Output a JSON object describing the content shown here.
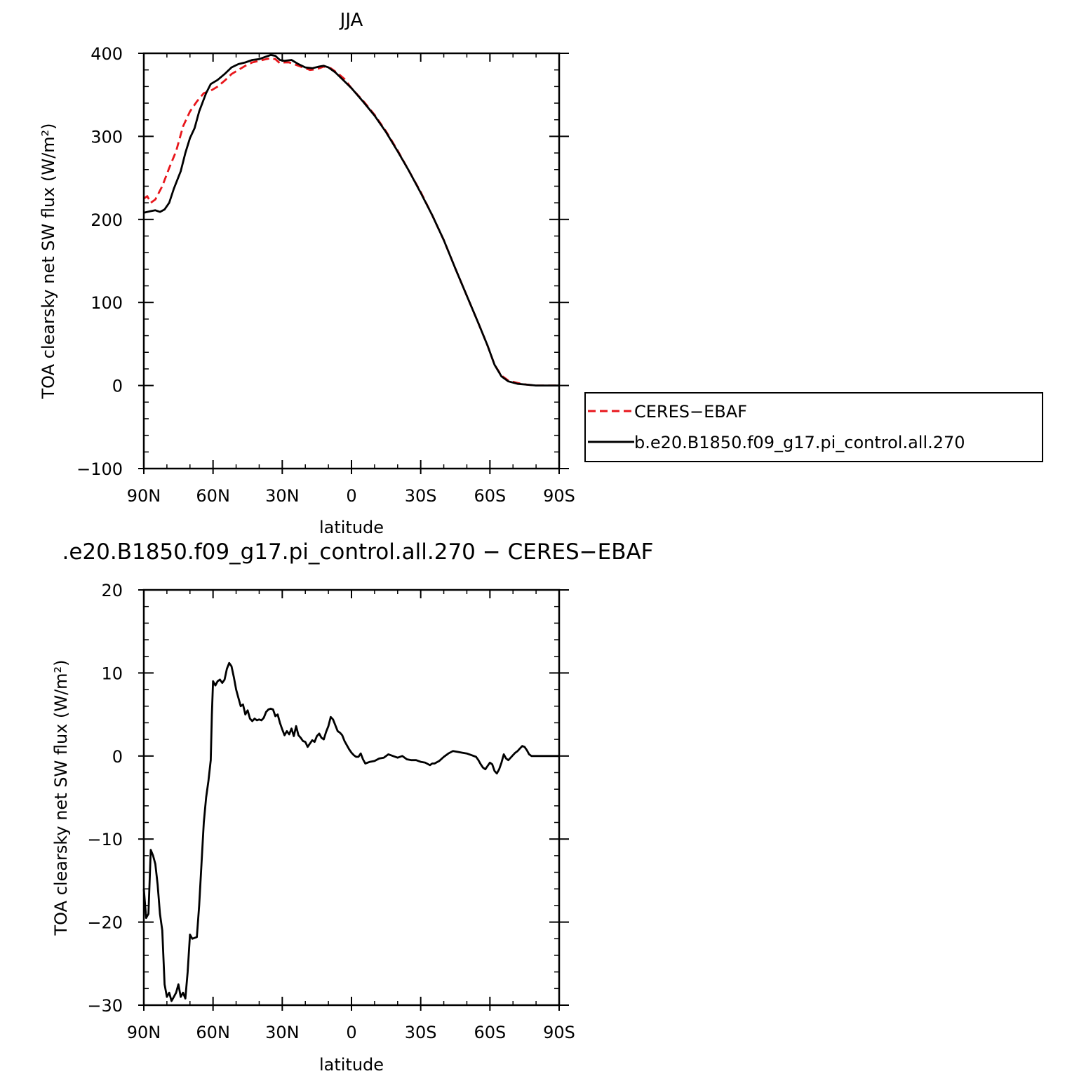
{
  "chart_data": [
    {
      "type": "line",
      "title": "JJA",
      "xlabel": "latitude",
      "ylabel": "TOA clearsky net SW flux (W/m²)",
      "xlim": [
        90,
        -90
      ],
      "ylim": [
        -100,
        400
      ],
      "xticks": [
        90,
        60,
        30,
        0,
        -30,
        -60,
        -90
      ],
      "xtick_labels": [
        "90N",
        "60N",
        "30N",
        "0",
        "30S",
        "60S",
        "90S"
      ],
      "yticks": [
        -100,
        0,
        100,
        200,
        300,
        400
      ],
      "ytick_labels": [
        "−100",
        "0",
        "100",
        "200",
        "300",
        "400"
      ],
      "legend": {
        "position": "right"
      },
      "series": [
        {
          "name": "CERES−EBAF",
          "color": "#e8161b",
          "dash": "dashed",
          "points": [
            [
              90,
              225
            ],
            [
              88.5,
              228
            ],
            [
              87,
              220
            ],
            [
              85,
              224
            ],
            [
              82,
              240
            ],
            [
              79,
              262
            ],
            [
              76,
              282
            ],
            [
              73,
              312
            ],
            [
              70,
              330
            ],
            [
              67,
              342
            ],
            [
              64,
              352
            ],
            [
              61,
              355
            ],
            [
              58,
              360
            ],
            [
              55,
              367
            ],
            [
              52,
              375
            ],
            [
              49,
              380
            ],
            [
              46,
              385
            ],
            [
              43,
              389
            ],
            [
              40,
              391
            ],
            [
              37,
              393
            ],
            [
              35,
              394
            ],
            [
              33,
              393
            ],
            [
              31,
              388
            ],
            [
              29,
              389
            ],
            [
              27,
              389
            ],
            [
              24,
              386
            ],
            [
              21,
              383
            ],
            [
              18,
              380
            ],
            [
              15,
              381
            ],
            [
              12,
              384
            ],
            [
              9,
              382
            ],
            [
              6,
              376
            ],
            [
              3,
              369
            ],
            [
              0,
              358
            ],
            [
              -5,
              343
            ],
            [
              -10,
              326
            ],
            [
              -15,
              306
            ],
            [
              -20,
              283
            ],
            [
              -25,
              258
            ],
            [
              -30,
              233
            ],
            [
              -35,
              205
            ],
            [
              -40,
              175
            ],
            [
              -45,
              141
            ],
            [
              -50,
              108
            ],
            [
              -55,
              75
            ],
            [
              -59,
              48
            ],
            [
              -62,
              25
            ],
            [
              -65,
              12
            ],
            [
              -68,
              6
            ],
            [
              -72,
              3
            ],
            [
              -76,
              1
            ],
            [
              -80,
              0
            ],
            [
              -90,
              0
            ]
          ]
        },
        {
          "name": "b.e20.B1850.f09_g17.pi_control.all.270",
          "color": "#000000",
          "dash": "solid",
          "points": [
            [
              90,
              208
            ],
            [
              87,
              210
            ],
            [
              85,
              211
            ],
            [
              83,
              209
            ],
            [
              81,
              212
            ],
            [
              79,
              220
            ],
            [
              77,
              237
            ],
            [
              74,
              258
            ],
            [
              72,
              280
            ],
            [
              70,
              298
            ],
            [
              68,
              310
            ],
            [
              66,
              330
            ],
            [
              63,
              352
            ],
            [
              61,
              363
            ],
            [
              58,
              368
            ],
            [
              55,
              375
            ],
            [
              52,
              383
            ],
            [
              49,
              387
            ],
            [
              46,
              389
            ],
            [
              43,
              392
            ],
            [
              40,
              393
            ],
            [
              37,
              396
            ],
            [
              35,
              398
            ],
            [
              33,
              397
            ],
            [
              31,
              392
            ],
            [
              29,
              391
            ],
            [
              26,
              392
            ],
            [
              23,
              387
            ],
            [
              20,
              383
            ],
            [
              17,
              382
            ],
            [
              14,
              384
            ],
            [
              12,
              385
            ],
            [
              10,
              383
            ],
            [
              7,
              377
            ],
            [
              4,
              369
            ],
            [
              0,
              358
            ],
            [
              -5,
              342
            ],
            [
              -10,
              325
            ],
            [
              -15,
              305
            ],
            [
              -20,
              282
            ],
            [
              -25,
              258
            ],
            [
              -30,
              232
            ],
            [
              -35,
              205
            ],
            [
              -40,
              175
            ],
            [
              -45,
              141
            ],
            [
              -50,
              108
            ],
            [
              -55,
              75
            ],
            [
              -59,
              48
            ],
            [
              -62,
              25
            ],
            [
              -65,
              11
            ],
            [
              -68,
              5
            ],
            [
              -72,
              2
            ],
            [
              -76,
              1
            ],
            [
              -80,
              0
            ],
            [
              -90,
              0
            ]
          ]
        }
      ]
    },
    {
      "type": "line",
      "title": ".e20.B1850.f09_g17.pi_control.all.270  −  CERES−EBAF",
      "xlabel": "latitude",
      "ylabel": "TOA clearsky net SW flux (W/m²)",
      "xlim": [
        90,
        -90
      ],
      "ylim": [
        -30,
        20
      ],
      "xticks": [
        90,
        60,
        30,
        0,
        -30,
        -60,
        -90
      ],
      "xtick_labels": [
        "90N",
        "60N",
        "30N",
        "0",
        "30S",
        "60S",
        "90S"
      ],
      "yticks": [
        -30,
        -20,
        -10,
        0,
        10,
        20
      ],
      "ytick_labels": [
        "−30",
        "−20",
        "−10",
        "0",
        "10",
        "20"
      ],
      "series": [
        {
          "color": "#000000",
          "dash": "solid",
          "points": [
            [
              90,
              -16
            ],
            [
              89,
              -19.5
            ],
            [
              88,
              -19
            ],
            [
              87,
              -11.3
            ],
            [
              86,
              -12
            ],
            [
              85,
              -13
            ],
            [
              84,
              -15.5
            ],
            [
              83,
              -19
            ],
            [
              82,
              -21
            ],
            [
              81,
              -27.5
            ],
            [
              80,
              -29
            ],
            [
              79,
              -28.5
            ],
            [
              78,
              -29.5
            ],
            [
              77,
              -29
            ],
            [
              76,
              -28.5
            ],
            [
              75,
              -27.5
            ],
            [
              74,
              -29
            ],
            [
              73,
              -28.5
            ],
            [
              72,
              -29.2
            ],
            [
              71,
              -26
            ],
            [
              70,
              -21.5
            ],
            [
              69,
              -22
            ],
            [
              67,
              -21.8
            ],
            [
              66,
              -18
            ],
            [
              65,
              -13
            ],
            [
              64,
              -8
            ],
            [
              63,
              -5
            ],
            [
              62,
              -3
            ],
            [
              61,
              -0.5
            ],
            [
              60.5,
              5
            ],
            [
              60,
              9
            ],
            [
              59,
              8.5
            ],
            [
              58,
              9
            ],
            [
              57,
              9.2
            ],
            [
              56,
              8.8
            ],
            [
              55,
              9.2
            ],
            [
              54,
              10.5
            ],
            [
              53,
              11.2
            ],
            [
              52,
              10.8
            ],
            [
              51,
              9.5
            ],
            [
              50,
              8
            ],
            [
              49,
              7
            ],
            [
              48,
              6
            ],
            [
              47,
              6.2
            ],
            [
              46,
              5
            ],
            [
              45,
              5.5
            ],
            [
              44,
              4.5
            ],
            [
              43,
              4.2
            ],
            [
              42,
              4.5
            ],
            [
              41,
              4.3
            ],
            [
              40,
              4.4
            ],
            [
              39,
              4.3
            ],
            [
              38,
              4.6
            ],
            [
              37,
              5.3
            ],
            [
              36,
              5.6
            ],
            [
              35,
              5.7
            ],
            [
              34,
              5.6
            ],
            [
              33,
              4.8
            ],
            [
              32,
              5
            ],
            [
              31,
              4
            ],
            [
              30,
              3.2
            ],
            [
              29,
              2.5
            ],
            [
              28,
              3
            ],
            [
              27,
              2.6
            ],
            [
              26,
              3.3
            ],
            [
              25,
              2.4
            ],
            [
              24,
              3.6
            ],
            [
              23,
              2.5
            ],
            [
              22,
              2.2
            ],
            [
              21,
              1.8
            ],
            [
              20,
              1.7
            ],
            [
              19,
              1.1
            ],
            [
              18,
              1.5
            ],
            [
              17,
              1.9
            ],
            [
              16,
              1.7
            ],
            [
              15,
              2.4
            ],
            [
              14,
              2.7
            ],
            [
              13,
              2.2
            ],
            [
              12,
              2
            ],
            [
              11,
              2.9
            ],
            [
              10,
              3.6
            ],
            [
              9,
              4.7
            ],
            [
              8,
              4.4
            ],
            [
              7,
              3.7
            ],
            [
              6,
              3
            ],
            [
              5,
              2.8
            ],
            [
              4,
              2.5
            ],
            [
              3,
              1.8
            ],
            [
              2,
              1.3
            ],
            [
              1,
              0.8
            ],
            [
              0,
              0.4
            ],
            [
              -1,
              0.1
            ],
            [
              -2,
              -0.1
            ],
            [
              -3,
              -0.1
            ],
            [
              -4,
              0.3
            ],
            [
              -5,
              -0.4
            ],
            [
              -6,
              -0.9
            ],
            [
              -8,
              -0.7
            ],
            [
              -10,
              -0.6
            ],
            [
              -12,
              -0.3
            ],
            [
              -14,
              -0.2
            ],
            [
              -16,
              0.2
            ],
            [
              -18,
              0
            ],
            [
              -20,
              -0.2
            ],
            [
              -22,
              0
            ],
            [
              -24,
              -0.4
            ],
            [
              -26,
              -0.5
            ],
            [
              -28,
              -0.5
            ],
            [
              -30,
              -0.7
            ],
            [
              -32,
              -0.8
            ],
            [
              -34,
              -1.1
            ],
            [
              -35,
              -0.9
            ],
            [
              -36,
              -0.9
            ],
            [
              -38,
              -0.6
            ],
            [
              -40,
              -0.1
            ],
            [
              -42,
              0.3
            ],
            [
              -44,
              0.6
            ],
            [
              -46,
              0.5
            ],
            [
              -48,
              0.4
            ],
            [
              -50,
              0.3
            ],
            [
              -52,
              0.1
            ],
            [
              -54,
              -0.1
            ],
            [
              -55,
              -0.5
            ],
            [
              -56,
              -1
            ],
            [
              -57,
              -1.4
            ],
            [
              -58,
              -1.6
            ],
            [
              -59,
              -1.2
            ],
            [
              -60,
              -0.8
            ],
            [
              -61,
              -1
            ],
            [
              -62,
              -1.8
            ],
            [
              -63,
              -2.1
            ],
            [
              -64,
              -1.6
            ],
            [
              -65,
              -0.8
            ],
            [
              -66,
              0.2
            ],
            [
              -67,
              -0.3
            ],
            [
              -68,
              -0.5
            ],
            [
              -69,
              -0.2
            ],
            [
              -70,
              0.1
            ],
            [
              -71,
              0.4
            ],
            [
              -72,
              0.6
            ],
            [
              -73,
              0.9
            ],
            [
              -74,
              1.2
            ],
            [
              -75,
              1.1
            ],
            [
              -76,
              0.7
            ],
            [
              -77,
              0.2
            ],
            [
              -78,
              0
            ],
            [
              -80,
              0
            ],
            [
              -90,
              0
            ]
          ]
        }
      ]
    }
  ]
}
